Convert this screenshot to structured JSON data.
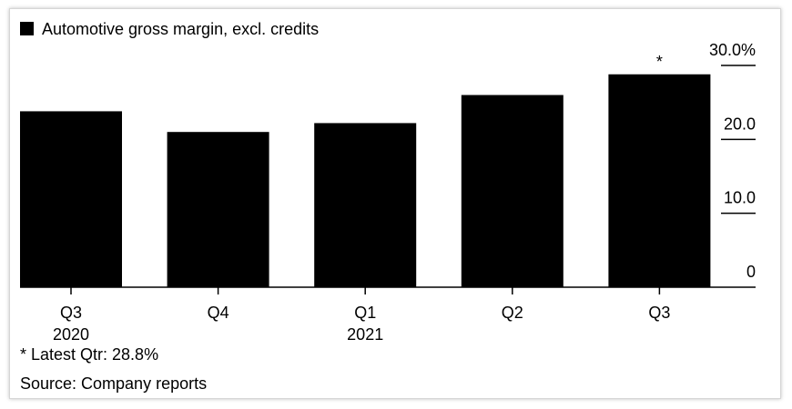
{
  "chart_data": {
    "type": "bar",
    "legend": {
      "label": "Automotive gross margin, excl. credits",
      "color": "#000000",
      "placement": "top-left"
    },
    "categories": [
      {
        "label": "Q3",
        "sublabel": "2020"
      },
      {
        "label": "Q4",
        "sublabel": ""
      },
      {
        "label": "Q1",
        "sublabel": "2021"
      },
      {
        "label": "Q2",
        "sublabel": ""
      },
      {
        "label": "Q3",
        "sublabel": ""
      }
    ],
    "series": [
      {
        "name": "Automotive gross margin, excl. credits",
        "values": [
          23.8,
          21.0,
          22.2,
          26.0,
          28.8
        ],
        "color": "#000000"
      }
    ],
    "ylim": [
      0,
      30
    ],
    "yticks": [
      {
        "value": 0,
        "label": "0"
      },
      {
        "value": 10,
        "label": "10.0"
      },
      {
        "value": 20,
        "label": "20.0"
      },
      {
        "value": 30,
        "label": "30.0%"
      }
    ],
    "y_axis_side": "right",
    "grid": false,
    "annotation": {
      "marker": "*",
      "category_index": 4
    }
  },
  "footnote": "* Latest Qtr: 28.8%",
  "source": "Source: Company reports"
}
